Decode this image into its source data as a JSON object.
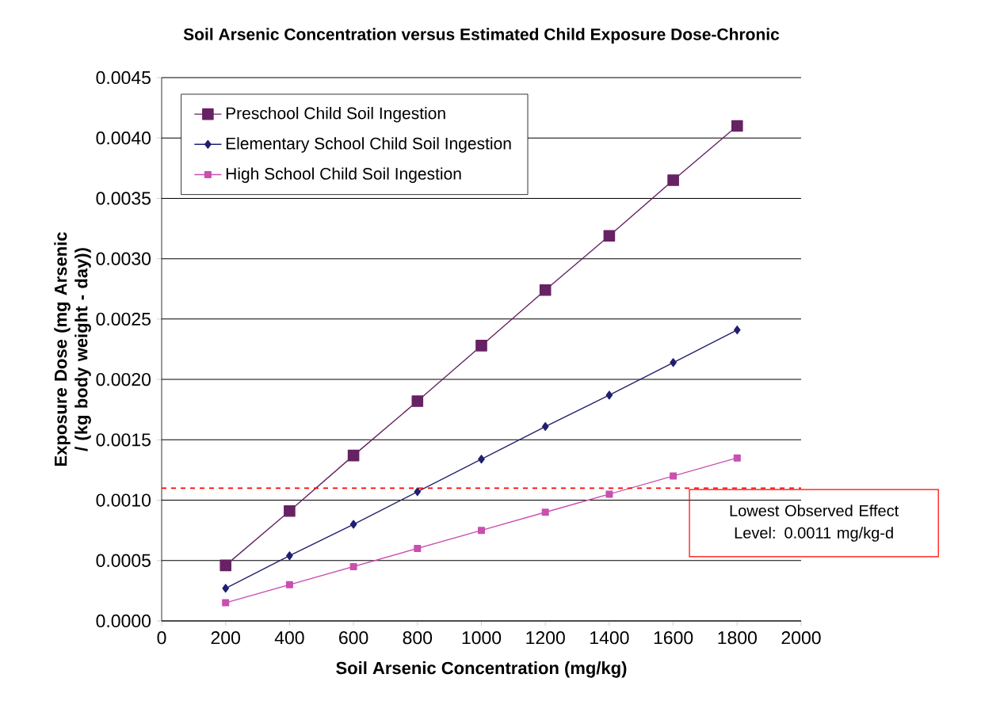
{
  "chart_data": {
    "type": "line",
    "title": "Soil Arsenic Concentration versus Estimated Child Exposure Dose-Chronic",
    "xlabel": "Soil Arsenic Concentration (mg/kg)",
    "ylabel": "Exposure Dose (mg Arsenic / (kg body weight - day))",
    "x": [
      200,
      400,
      600,
      800,
      1000,
      1200,
      1400,
      1600,
      1800
    ],
    "series": [
      {
        "name": "Preschool Child Soil Ingestion",
        "color": "#662263",
        "marker": "square",
        "values": [
          0.00046,
          0.00091,
          0.00137,
          0.00182,
          0.00228,
          0.00274,
          0.00319,
          0.00365,
          0.0041
        ]
      },
      {
        "name": "Elementary School Child Soil Ingestion",
        "color": "#20206e",
        "marker": "diamond",
        "values": [
          0.00027,
          0.00054,
          0.0008,
          0.00107,
          0.00134,
          0.00161,
          0.00187,
          0.00214,
          0.00241
        ]
      },
      {
        "name": "High School Child Soil Ingestion",
        "color": "#c94fb0",
        "marker": "square",
        "values": [
          0.00015,
          0.0003,
          0.00045,
          0.0006,
          0.00075,
          0.0009,
          0.00105,
          0.0012,
          0.00135
        ]
      }
    ],
    "xlim": [
      0,
      2000
    ],
    "xticks": [
      0,
      200,
      400,
      600,
      800,
      1000,
      1200,
      1400,
      1600,
      1800,
      2000
    ],
    "ylim": [
      0,
      0.0045
    ],
    "yticks": [
      {
        "value": 0,
        "label": "0.0000"
      },
      {
        "value": 0.0005,
        "label": "0.0005"
      },
      {
        "value": 0.001,
        "label": "0.0010"
      },
      {
        "value": 0.0015,
        "label": "0.0015"
      },
      {
        "value": 0.002,
        "label": "0.0020"
      },
      {
        "value": 0.0025,
        "label": "0.0025"
      },
      {
        "value": 0.003,
        "label": "0.0030"
      },
      {
        "value": 0.0035,
        "label": "0.0035"
      },
      {
        "value": 0.004,
        "label": "0.0040"
      },
      {
        "value": 0.0045,
        "label": "0.0045"
      }
    ],
    "ref_lines": [
      {
        "axis": "y",
        "value": 0.0011,
        "label": "Lowest Observed Effect Level: 0.0011 mg/kg-d",
        "color": "#ff0000",
        "line_style": "dashed"
      }
    ],
    "grid": "y",
    "legend": "top left",
    "line_style": "solid"
  }
}
